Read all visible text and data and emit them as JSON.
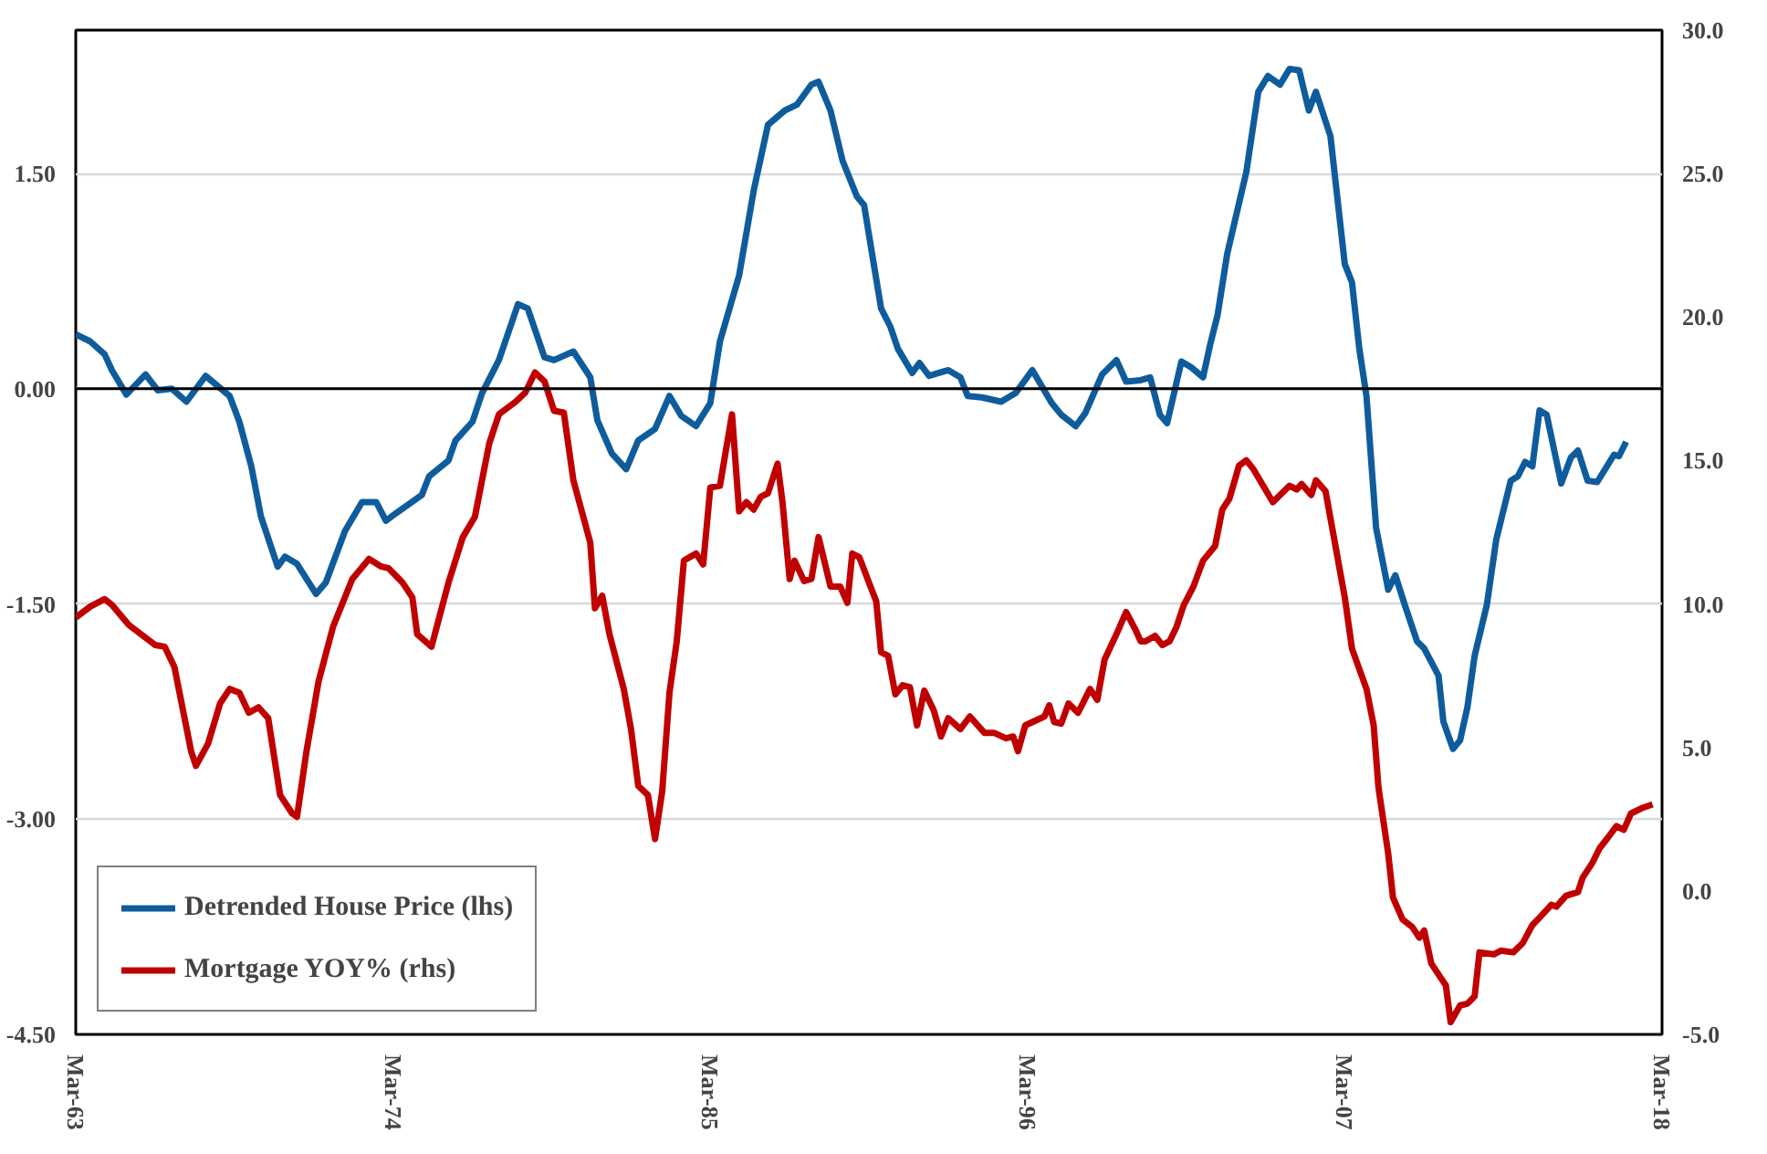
{
  "chart_data": {
    "type": "line",
    "xlim": [
      "1963-03",
      "2018-03"
    ],
    "xticks": [
      {
        "value": "1963-03",
        "label": "Mar-63"
      },
      {
        "value": "1974-03",
        "label": "Mar-74"
      },
      {
        "value": "1985-03",
        "label": "Mar-85"
      },
      {
        "value": "1996-03",
        "label": "Mar-96"
      },
      {
        "value": "2007-03",
        "label": "Mar-07"
      },
      {
        "value": "2018-03",
        "label": "Mar-18"
      }
    ],
    "ylim": [
      -4.5,
      2.5
    ],
    "yticks": [
      {
        "value": -4.5,
        "label": "-4.50"
      },
      {
        "value": -3,
        "label": "-3.00"
      },
      {
        "value": -1.5,
        "label": "-1.50"
      },
      {
        "value": 0,
        "label": "0.00"
      },
      {
        "value": 1.5,
        "label": "1.50"
      }
    ],
    "y2lim": [
      -5,
      30
    ],
    "y2ticks": [
      {
        "value": -5,
        "label": "-5.0"
      },
      {
        "value": 0,
        "label": "0.0"
      },
      {
        "value": 5,
        "label": "5.0"
      },
      {
        "value": 10,
        "label": "10.0"
      },
      {
        "value": 15,
        "label": "15.0"
      },
      {
        "value": 20,
        "label": "20.0"
      },
      {
        "value": 25,
        "label": "25.0"
      },
      {
        "value": 30,
        "label": "30.0"
      }
    ],
    "grid": "y",
    "legend": "bottom left",
    "ref_lines": [
      {
        "axis": "y",
        "value": 0,
        "label": null,
        "color": "#000000"
      }
    ],
    "series": [
      {
        "name": "Detrended House Price (lhs)",
        "color": "#0f5c9c",
        "x": [
          "1963-03",
          "1963-09",
          "1964-03",
          "1964-06",
          "1964-12",
          "1965-08",
          "1966-01",
          "1966-07",
          "1967-01",
          "1967-09",
          "1968-07",
          "1968-11",
          "1969-04",
          "1969-08",
          "1970-03",
          "1970-06",
          "1970-11",
          "1971-07",
          "1971-11",
          "1972-07",
          "1973-02",
          "1973-08",
          "1973-12",
          "1974-04",
          "1975-03",
          "1975-06",
          "1976-02",
          "1976-05",
          "1976-12",
          "1977-04",
          "1977-11",
          "1978-07",
          "1978-11",
          "1979-06",
          "1979-10",
          "1980-06",
          "1981-01",
          "1981-04",
          "1981-10",
          "1982-04",
          "1982-09",
          "1983-04",
          "1983-10",
          "1984-03",
          "1984-09",
          "1985-03",
          "1985-07",
          "1986-03",
          "1986-09",
          "1987-03",
          "1987-10",
          "1988-03",
          "1988-09",
          "1988-12",
          "1989-05",
          "1989-10",
          "1990-04",
          "1990-07",
          "1990-10",
          "1991-02",
          "1991-06",
          "1991-09",
          "1992-03",
          "1992-06",
          "1992-10",
          "1993-06",
          "1993-11",
          "1994-02",
          "1994-08",
          "1995-04",
          "1995-10",
          "1996-05",
          "1997-01",
          "1997-05",
          "1997-11",
          "1998-03",
          "1998-10",
          "1999-04",
          "1999-08",
          "2000-02",
          "2000-06",
          "2000-10",
          "2001-01",
          "2001-07",
          "2001-11",
          "2002-04",
          "2002-07",
          "2002-10",
          "2003-02",
          "2003-05",
          "2003-10",
          "2004-03",
          "2004-07",
          "2004-12",
          "2005-04",
          "2005-08",
          "2005-12",
          "2006-03",
          "2006-09",
          "2007-03",
          "2007-06",
          "2007-09",
          "2007-12",
          "2008-04",
          "2008-09",
          "2008-12",
          "2009-04",
          "2009-09",
          "2009-12",
          "2010-06",
          "2010-08",
          "2010-12",
          "2011-03",
          "2011-06",
          "2011-09",
          "2012-02",
          "2012-06",
          "2012-12",
          "2013-03",
          "2013-06",
          "2013-09",
          "2013-12",
          "2014-03",
          "2014-09",
          "2015-01",
          "2015-04",
          "2015-08",
          "2015-12",
          "2016-07",
          "2016-09",
          "2016-12"
        ],
        "values": [
          0.38,
          0.33,
          0.24,
          0.13,
          -0.04,
          0.1,
          -0.01,
          0.0,
          -0.09,
          0.09,
          -0.05,
          -0.23,
          -0.54,
          -0.89,
          -1.24,
          -1.17,
          -1.22,
          -1.43,
          -1.35,
          -0.99,
          -0.79,
          -0.79,
          -0.92,
          -0.87,
          -0.74,
          -0.61,
          -0.5,
          -0.36,
          -0.23,
          -0.03,
          0.2,
          0.59,
          0.56,
          0.22,
          0.2,
          0.26,
          0.08,
          -0.22,
          -0.45,
          -0.56,
          -0.36,
          -0.28,
          -0.05,
          -0.19,
          -0.26,
          -0.1,
          0.33,
          0.79,
          1.38,
          1.84,
          1.94,
          1.98,
          2.12,
          2.14,
          1.94,
          1.59,
          1.34,
          1.28,
          0.97,
          0.56,
          0.43,
          0.28,
          0.11,
          0.18,
          0.09,
          0.13,
          0.08,
          -0.05,
          -0.06,
          -0.09,
          -0.03,
          0.13,
          -0.1,
          -0.18,
          -0.26,
          -0.17,
          0.1,
          0.2,
          0.05,
          0.06,
          0.08,
          -0.18,
          -0.24,
          0.19,
          0.15,
          0.08,
          0.31,
          0.51,
          0.94,
          1.15,
          1.51,
          2.07,
          2.18,
          2.12,
          2.23,
          2.22,
          1.94,
          2.07,
          1.76,
          0.87,
          0.74,
          0.28,
          -0.05,
          -0.97,
          -1.4,
          -1.3,
          -1.51,
          -1.76,
          -1.81,
          -2.0,
          -2.32,
          -2.51,
          -2.45,
          -2.22,
          -1.86,
          -1.51,
          -1.05,
          -0.64,
          -0.61,
          -0.51,
          -0.54,
          -0.15,
          -0.18,
          -0.66,
          -0.48,
          -0.43,
          -0.64,
          -0.65,
          -0.46,
          -0.47,
          -0.37
        ]
      },
      {
        "name": "Mortgage YOY% (rhs)",
        "color": "#c00000",
        "axis": "y2",
        "x": [
          "1963-03",
          "1963-09",
          "1964-03",
          "1964-06",
          "1965-01",
          "1965-12",
          "1966-04",
          "1966-08",
          "1967-03",
          "1967-05",
          "1967-10",
          "1968-03",
          "1968-07",
          "1968-11",
          "1969-03",
          "1969-07",
          "1969-11",
          "1970-04",
          "1970-09",
          "1970-11",
          "1971-03",
          "1971-08",
          "1972-02",
          "1972-10",
          "1973-05",
          "1973-10",
          "1974-01",
          "1974-07",
          "1974-11",
          "1975-01",
          "1975-07",
          "1976-02",
          "1976-08",
          "1977-01",
          "1977-07",
          "1977-11",
          "1978-06",
          "1978-10",
          "1979-02",
          "1979-06",
          "1979-10",
          "1980-02",
          "1980-06",
          "1981-01",
          "1981-03",
          "1981-06",
          "1981-09",
          "1982-03",
          "1982-06",
          "1982-09",
          "1983-01",
          "1983-04",
          "1983-07",
          "1983-10",
          "1984-01",
          "1984-04",
          "1984-09",
          "1984-12",
          "1985-03",
          "1985-07",
          "1985-12",
          "1986-03",
          "1986-06",
          "1986-09",
          "1986-12",
          "1987-03",
          "1987-07",
          "1987-09",
          "1987-12",
          "1988-02",
          "1988-06",
          "1988-09",
          "1988-12",
          "1989-05",
          "1989-09",
          "1989-12",
          "1990-02",
          "1990-05",
          "1990-09",
          "1990-12",
          "1991-02",
          "1991-05",
          "1991-08",
          "1991-11",
          "1992-02",
          "1992-05",
          "1992-08",
          "1992-12",
          "1993-03",
          "1993-06",
          "1993-11",
          "1994-03",
          "1994-09",
          "1995-01",
          "1995-06",
          "1995-09",
          "1995-11",
          "1996-02",
          "1996-10",
          "1996-12",
          "1997-02",
          "1997-05",
          "1997-08",
          "1997-12",
          "1998-05",
          "1998-08",
          "1998-11",
          "1999-04",
          "1999-08",
          "1999-12",
          "2000-02",
          "2000-04",
          "2000-08",
          "2000-11",
          "2001-02",
          "2001-05",
          "2001-08",
          "2001-12",
          "2002-04",
          "2002-09",
          "2002-12",
          "2003-03",
          "2003-07",
          "2003-10",
          "2004-01",
          "2004-09",
          "2005-04",
          "2005-07",
          "2005-09",
          "2006-01",
          "2006-03",
          "2006-07",
          "2006-10",
          "2007-03",
          "2007-06",
          "2007-12",
          "2008-03",
          "2008-05",
          "2008-09",
          "2008-11",
          "2009-03",
          "2009-07",
          "2009-10",
          "2009-12",
          "2010-03",
          "2010-07",
          "2010-09",
          "2010-11",
          "2011-03",
          "2011-06",
          "2011-09",
          "2011-11",
          "2012-05",
          "2012-08",
          "2013-01",
          "2013-05",
          "2013-09",
          "2013-12",
          "2014-05",
          "2014-07",
          "2014-11",
          "2015-04",
          "2015-06",
          "2015-10",
          "2016-01",
          "2016-04",
          "2016-08",
          "2016-11",
          "2017-02",
          "2017-07",
          "2017-11"
        ],
        "values": [
          9.53,
          9.91,
          10.17,
          9.97,
          9.27,
          8.57,
          8.51,
          7.81,
          4.87,
          4.36,
          5.13,
          6.53,
          7.04,
          6.91,
          6.21,
          6.4,
          6.02,
          3.34,
          2.7,
          2.58,
          4.87,
          7.3,
          9.21,
          10.87,
          11.57,
          11.31,
          11.25,
          10.74,
          10.23,
          8.95,
          8.51,
          10.74,
          12.33,
          13.04,
          15.59,
          16.61,
          17.05,
          17.37,
          18.07,
          17.76,
          16.73,
          16.67,
          14.31,
          12.14,
          9.85,
          10.29,
          8.95,
          7.04,
          5.64,
          3.66,
          3.34,
          1.81,
          3.47,
          6.91,
          8.7,
          11.51,
          11.76,
          11.38,
          14.06,
          14.12,
          16.61,
          13.23,
          13.55,
          13.29,
          13.74,
          13.86,
          14.89,
          13.55,
          10.87,
          11.51,
          10.8,
          10.87,
          12.33,
          10.61,
          10.61,
          10.04,
          11.76,
          11.63,
          10.74,
          10.1,
          8.32,
          8.19,
          6.85,
          7.17,
          7.1,
          5.77,
          6.98,
          6.28,
          5.38,
          6.02,
          5.64,
          6.08,
          5.51,
          5.51,
          5.32,
          5.38,
          4.87,
          5.77,
          6.08,
          6.47,
          5.89,
          5.83,
          6.53,
          6.21,
          7.04,
          6.66,
          8.06,
          8.95,
          9.72,
          9.08,
          8.7,
          8.7,
          8.89,
          8.57,
          8.7,
          9.21,
          9.97,
          10.61,
          11.51,
          12.02,
          13.29,
          13.67,
          14.82,
          15.01,
          14.69,
          13.55,
          14.12,
          13.99,
          14.18,
          13.8,
          14.31,
          13.93,
          12.53,
          10.23,
          8.44,
          7.04,
          5.77,
          3.6,
          1.3,
          -0.23,
          -0.99,
          -1.25,
          -1.63,
          -1.38,
          -2.53,
          -3.04,
          -3.29,
          -4.57,
          -3.99,
          -3.93,
          -3.67,
          -2.14,
          -2.21,
          -2.08,
          -2.14,
          -1.82,
          -1.19,
          -0.93,
          -0.48,
          -0.55,
          -0.17,
          -0.04,
          0.47,
          0.98,
          1.49,
          1.81,
          2.26,
          2.13,
          2.7,
          2.9,
          3.02
        ]
      }
    ]
  }
}
